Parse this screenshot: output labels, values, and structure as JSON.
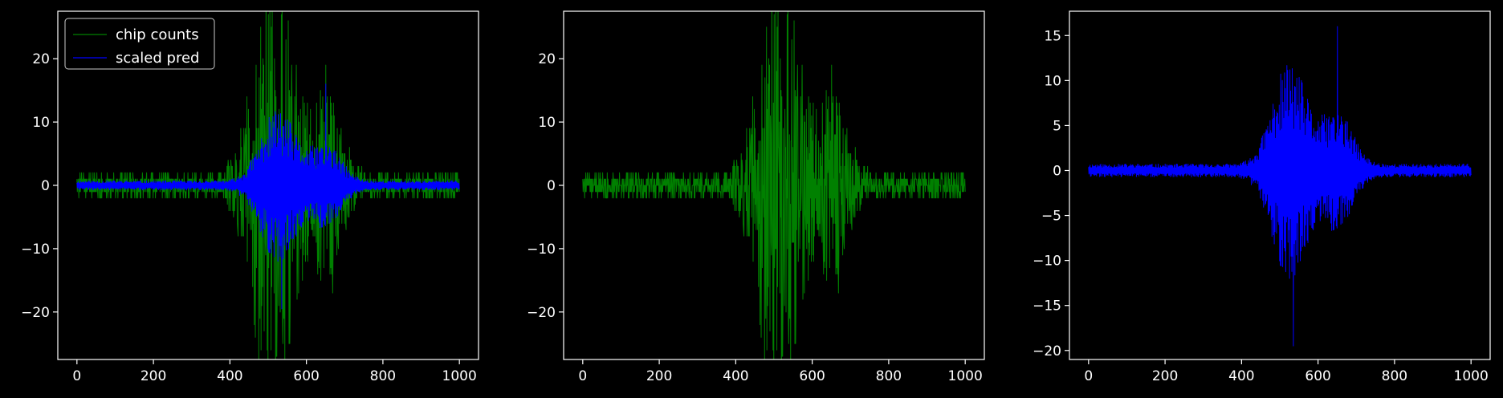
{
  "figure": {
    "background": "#000000",
    "axis_color": "#ffffff",
    "text_color": "#ffffff"
  },
  "chart_data": [
    {
      "type": "line",
      "xlim": [
        -50,
        1050
      ],
      "ylim": [
        -27.5,
        27.5
      ],
      "xticks": [
        0,
        200,
        400,
        600,
        800,
        1000
      ],
      "yticks": [
        -20,
        -10,
        0,
        10,
        20
      ],
      "xtick_labels": [
        "0",
        "200",
        "400",
        "600",
        "800",
        "1000"
      ],
      "ytick_labels": [
        "−20",
        "−10",
        "0",
        "10",
        "20"
      ],
      "grid": false,
      "legend": {
        "position": "top-left",
        "entries": [
          "chip counts",
          "scaled pred"
        ]
      },
      "series": [
        {
          "name": "chip counts",
          "color": "#008000",
          "style": "pm-noise",
          "n": 1000,
          "base": 1.5,
          "peaks": [
            [
              480,
              23
            ],
            [
              650,
              17
            ],
            [
              540,
              22
            ],
            [
              520,
              11
            ]
          ],
          "extremes": [
            [
              480,
              25
            ],
            [
              538,
              -25
            ],
            [
              650,
              19
            ],
            [
              668,
              -17
            ]
          ],
          "seed": 7
        },
        {
          "name": "scaled pred",
          "color": "#0000ff",
          "style": "pm-band",
          "n": 1000,
          "base": 0.6,
          "peaks": [
            [
              500,
              7
            ],
            [
              530,
              9
            ],
            [
              650,
              9
            ],
            [
              560,
              4
            ]
          ],
          "extremes": [
            [
              535,
              -19.5
            ],
            [
              650,
              16
            ]
          ],
          "seed": 11
        }
      ]
    },
    {
      "type": "line",
      "xlim": [
        -50,
        1050
      ],
      "ylim": [
        -27.5,
        27.5
      ],
      "xticks": [
        0,
        200,
        400,
        600,
        800,
        1000
      ],
      "yticks": [
        -20,
        -10,
        0,
        10,
        20
      ],
      "xtick_labels": [
        "0",
        "200",
        "400",
        "600",
        "800",
        "1000"
      ],
      "ytick_labels": [
        "−20",
        "−10",
        "0",
        "10",
        "20"
      ],
      "grid": false,
      "series": [
        {
          "color": "#008000",
          "style": "pm-noise",
          "n": 1000,
          "base": 1.5,
          "peaks": [
            [
              480,
              23
            ],
            [
              650,
              17
            ],
            [
              540,
              22
            ],
            [
              520,
              11
            ]
          ],
          "extremes": [
            [
              480,
              25
            ],
            [
              538,
              -25
            ],
            [
              650,
              19
            ],
            [
              668,
              -17
            ]
          ],
          "seed": 7
        }
      ]
    },
    {
      "type": "line",
      "xlim": [
        -50,
        1050
      ],
      "ylim": [
        -21,
        17.7
      ],
      "xticks": [
        0,
        200,
        400,
        600,
        800,
        1000
      ],
      "yticks": [
        -20,
        -15,
        -10,
        -5,
        0,
        5,
        10,
        15
      ],
      "xtick_labels": [
        "0",
        "200",
        "400",
        "600",
        "800",
        "1000"
      ],
      "ytick_labels": [
        "−20",
        "−15",
        "−10",
        "−5",
        "0",
        "5",
        "10",
        "15"
      ],
      "grid": false,
      "series": [
        {
          "color": "#0000ff",
          "style": "pm-band",
          "n": 1000,
          "base": 0.6,
          "peaks": [
            [
              500,
              7
            ],
            [
              530,
              9
            ],
            [
              650,
              9
            ],
            [
              560,
              4
            ]
          ],
          "extremes": [
            [
              535,
              -19.5
            ],
            [
              650,
              16
            ]
          ],
          "seed": 11
        }
      ]
    }
  ]
}
